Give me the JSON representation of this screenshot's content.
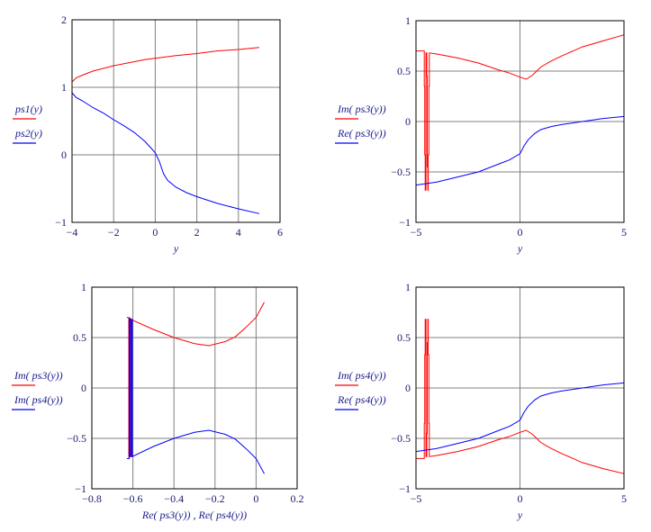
{
  "colors": {
    "series1": "#ff0000",
    "series2": "#0000ff",
    "grid": "#808080",
    "frame": "#000000",
    "text": "#1a1a8c"
  },
  "chart_data": [
    {
      "type": "line",
      "xlabel": "y",
      "xlim": [
        -4,
        6
      ],
      "ylim": [
        -1,
        2
      ],
      "xticks": [
        -4,
        -2,
        0,
        2,
        4,
        6
      ],
      "yticks": [
        -1,
        0,
        1,
        2
      ],
      "grid": true,
      "legend": "left",
      "series": [
        {
          "name": "ps1(y)",
          "color": "#ff0000",
          "points": [
            [
              -4,
              1.08
            ],
            [
              -3.8,
              1.14
            ],
            [
              -3.5,
              1.18
            ],
            [
              -3,
              1.24
            ],
            [
              -2.5,
              1.28
            ],
            [
              -2,
              1.32
            ],
            [
              -1.5,
              1.35
            ],
            [
              -1,
              1.38
            ],
            [
              -0.5,
              1.41
            ],
            [
              0,
              1.43
            ],
            [
              1,
              1.47
            ],
            [
              2,
              1.5
            ],
            [
              3,
              1.54
            ],
            [
              4,
              1.56
            ],
            [
              5,
              1.59
            ]
          ]
        },
        {
          "name": "ps2(y)",
          "color": "#0000ff",
          "points": [
            [
              -4,
              0.92
            ],
            [
              -3.8,
              0.85
            ],
            [
              -3.5,
              0.8
            ],
            [
              -3,
              0.7
            ],
            [
              -2.5,
              0.62
            ],
            [
              -2,
              0.52
            ],
            [
              -1.5,
              0.43
            ],
            [
              -1,
              0.33
            ],
            [
              -0.5,
              0.2
            ],
            [
              -0.2,
              0.1
            ],
            [
              0,
              0.03
            ],
            [
              0.2,
              -0.1
            ],
            [
              0.4,
              -0.28
            ],
            [
              0.6,
              -0.38
            ],
            [
              1,
              -0.48
            ],
            [
              1.5,
              -0.56
            ],
            [
              2,
              -0.62
            ],
            [
              3,
              -0.72
            ],
            [
              4,
              -0.8
            ],
            [
              5,
              -0.87
            ]
          ]
        }
      ]
    },
    {
      "type": "line",
      "xlabel": "y",
      "xlim": [
        -5,
        5
      ],
      "ylim": [
        -1,
        1
      ],
      "xticks": [
        -5,
        0,
        5
      ],
      "yticks": [
        -1,
        -0.5,
        0,
        0.5,
        1
      ],
      "grid": true,
      "legend": "left",
      "series": [
        {
          "name": "Im( ps3(y))",
          "color": "#ff0000",
          "points": [
            [
              -5,
              0.7
            ],
            [
              -4.6,
              0.7
            ],
            [
              -4.6,
              0.35
            ],
            [
              -4.58,
              0.35
            ],
            [
              -4.58,
              -0.33
            ],
            [
              -4.56,
              -0.33
            ],
            [
              -4.56,
              -0.68
            ],
            [
              -4.52,
              -0.68
            ],
            [
              -4.52,
              0.68
            ],
            [
              -4.48,
              0.68
            ],
            [
              -4.48,
              0.45
            ],
            [
              -4.46,
              0.45
            ],
            [
              -4.46,
              -0.45
            ],
            [
              -4.43,
              -0.45
            ],
            [
              -4.43,
              -0.68
            ],
            [
              -4.41,
              -0.68
            ],
            [
              -4.41,
              -0.33
            ],
            [
              -4.38,
              -0.33
            ],
            [
              -4.38,
              0.35
            ],
            [
              -4.36,
              0.35
            ],
            [
              -4.36,
              0.68
            ],
            [
              -4,
              0.67
            ],
            [
              -3,
              0.63
            ],
            [
              -2,
              0.58
            ],
            [
              -1,
              0.51
            ],
            [
              -0.5,
              0.48
            ],
            [
              0,
              0.44
            ],
            [
              0.3,
              0.42
            ],
            [
              0.6,
              0.46
            ],
            [
              1,
              0.54
            ],
            [
              1.5,
              0.6
            ],
            [
              2,
              0.65
            ],
            [
              3,
              0.74
            ],
            [
              4,
              0.8
            ],
            [
              5,
              0.86
            ]
          ]
        },
        {
          "name": "Re( ps3(y))",
          "color": "#0000ff",
          "points": [
            [
              -5,
              -0.63
            ],
            [
              -4,
              -0.6
            ],
            [
              -3,
              -0.55
            ],
            [
              -2,
              -0.5
            ],
            [
              -1,
              -0.42
            ],
            [
              -0.5,
              -0.38
            ],
            [
              0,
              -0.32
            ],
            [
              0.2,
              -0.24
            ],
            [
              0.4,
              -0.18
            ],
            [
              0.7,
              -0.12
            ],
            [
              1,
              -0.08
            ],
            [
              1.5,
              -0.05
            ],
            [
              2,
              -0.03
            ],
            [
              3,
              0.0
            ],
            [
              4,
              0.03
            ],
            [
              5,
              0.05
            ]
          ]
        }
      ]
    },
    {
      "type": "line",
      "xlabel": "Re( ps3(y)) , Re( ps4(y))",
      "xlim": [
        -0.8,
        0.2
      ],
      "ylim": [
        -1,
        1
      ],
      "xticks": [
        -0.8,
        -0.6,
        -0.4,
        -0.2,
        0,
        0.2
      ],
      "yticks": [
        -1,
        -0.5,
        0,
        0.5,
        1
      ],
      "grid": true,
      "legend": "left",
      "series": [
        {
          "name": "Im( ps3(y))",
          "color": "#ff0000",
          "points": [
            [
              -0.63,
              0.7
            ],
            [
              -0.62,
              0.7
            ],
            [
              -0.62,
              -0.68
            ],
            [
              -0.615,
              -0.68
            ],
            [
              -0.615,
              0.69
            ],
            [
              -0.61,
              0.68
            ],
            [
              -0.5,
              0.58
            ],
            [
              -0.4,
              0.5
            ],
            [
              -0.3,
              0.44
            ],
            [
              -0.23,
              0.42
            ],
            [
              -0.15,
              0.46
            ],
            [
              -0.1,
              0.51
            ],
            [
              -0.05,
              0.6
            ],
            [
              0,
              0.7
            ],
            [
              0.04,
              0.85
            ]
          ]
        },
        {
          "name": "Im( ps4(y))",
          "color": "#0000ff",
          "points": [
            [
              -0.63,
              -0.7
            ],
            [
              -0.618,
              -0.7
            ],
            [
              -0.618,
              0.69
            ],
            [
              -0.612,
              0.69
            ],
            [
              -0.612,
              -0.68
            ],
            [
              -0.607,
              -0.68
            ],
            [
              -0.607,
              0.68
            ],
            [
              -0.603,
              0.68
            ],
            [
              -0.603,
              -0.68
            ],
            [
              -0.5,
              -0.58
            ],
            [
              -0.4,
              -0.5
            ],
            [
              -0.3,
              -0.44
            ],
            [
              -0.23,
              -0.42
            ],
            [
              -0.15,
              -0.46
            ],
            [
              -0.1,
              -0.51
            ],
            [
              -0.05,
              -0.6
            ],
            [
              0,
              -0.7
            ],
            [
              0.04,
              -0.85
            ]
          ]
        }
      ]
    },
    {
      "type": "line",
      "xlabel": "y",
      "xlim": [
        -5,
        5
      ],
      "ylim": [
        -1,
        1
      ],
      "xticks": [
        -5,
        0,
        5
      ],
      "yticks": [
        -1,
        -0.5,
        0,
        0.5,
        1
      ],
      "grid": true,
      "legend": "left",
      "series": [
        {
          "name": "Im( ps4(y))",
          "color": "#ff0000",
          "points": [
            [
              -5,
              -0.7
            ],
            [
              -4.6,
              -0.7
            ],
            [
              -4.6,
              -0.35
            ],
            [
              -4.58,
              -0.35
            ],
            [
              -4.58,
              0.33
            ],
            [
              -4.56,
              0.33
            ],
            [
              -4.56,
              0.68
            ],
            [
              -4.52,
              0.68
            ],
            [
              -4.52,
              -0.68
            ],
            [
              -4.48,
              -0.68
            ],
            [
              -4.48,
              -0.45
            ],
            [
              -4.46,
              -0.45
            ],
            [
              -4.46,
              0.45
            ],
            [
              -4.43,
              0.45
            ],
            [
              -4.43,
              0.68
            ],
            [
              -4.41,
              0.68
            ],
            [
              -4.41,
              0.33
            ],
            [
              -4.38,
              0.33
            ],
            [
              -4.38,
              -0.35
            ],
            [
              -4.36,
              -0.35
            ],
            [
              -4.36,
              -0.68
            ],
            [
              -4,
              -0.67
            ],
            [
              -3,
              -0.63
            ],
            [
              -2,
              -0.58
            ],
            [
              -1,
              -0.51
            ],
            [
              -0.5,
              -0.48
            ],
            [
              0,
              -0.44
            ],
            [
              0.3,
              -0.42
            ],
            [
              0.6,
              -0.46
            ],
            [
              1,
              -0.54
            ],
            [
              1.5,
              -0.6
            ],
            [
              2,
              -0.65
            ],
            [
              3,
              -0.74
            ],
            [
              4,
              -0.8
            ],
            [
              5,
              -0.85
            ]
          ]
        },
        {
          "name": "Re( ps4(y))",
          "color": "#0000ff",
          "points": [
            [
              -5,
              -0.63
            ],
            [
              -4,
              -0.6
            ],
            [
              -3,
              -0.55
            ],
            [
              -2,
              -0.5
            ],
            [
              -1,
              -0.42
            ],
            [
              -0.5,
              -0.38
            ],
            [
              0,
              -0.32
            ],
            [
              0.2,
              -0.24
            ],
            [
              0.4,
              -0.18
            ],
            [
              0.7,
              -0.12
            ],
            [
              1,
              -0.08
            ],
            [
              1.5,
              -0.05
            ],
            [
              2,
              -0.03
            ],
            [
              3,
              0.0
            ],
            [
              4,
              0.03
            ],
            [
              5,
              0.05
            ]
          ]
        }
      ]
    }
  ]
}
